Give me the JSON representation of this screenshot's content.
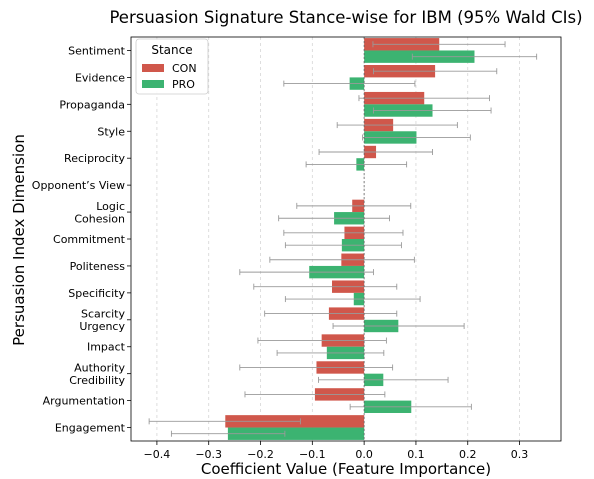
{
  "chart_data": {
    "type": "bar",
    "orientation": "horizontal",
    "title": "Persuasion Signature Stance-wise for IBM (95% Wald CIs)",
    "xlabel": "Coefficient Value (Feature Importance)",
    "ylabel": "Persuasion Index Dimension",
    "xlim": [
      -0.45,
      0.38
    ],
    "xticks": [
      -0.4,
      -0.3,
      -0.2,
      -0.1,
      0.0,
      0.1,
      0.2,
      0.3
    ],
    "xtick_labels": [
      "−0.4",
      "−0.3",
      "−0.2",
      "−0.1",
      "0.0",
      "0.1",
      "0.2",
      "0.3"
    ],
    "grid": "vertical dashed",
    "legend": {
      "title": "Stance",
      "position": "top-left"
    },
    "categories": [
      [
        "Sentiment"
      ],
      [
        "Evidence"
      ],
      [
        "Propaganda"
      ],
      [
        "Style"
      ],
      [
        "Reciprocity"
      ],
      [
        "Opponent’s View"
      ],
      [
        "Logic",
        "Cohesion"
      ],
      [
        "Commitment"
      ],
      [
        "Politeness"
      ],
      [
        "Specificity"
      ],
      [
        "Scarcity",
        "Urgency"
      ],
      [
        "Impact"
      ],
      [
        "Authority",
        "Credibility"
      ],
      [
        "Argumentation"
      ],
      [
        "Engagement"
      ]
    ],
    "series": [
      {
        "name": "CON",
        "color": "#d0574b",
        "values": [
          0.145,
          0.137,
          0.116,
          0.056,
          0.023,
          0.0,
          -0.023,
          -0.038,
          -0.044,
          -0.062,
          -0.068,
          -0.082,
          -0.092,
          -0.095,
          -0.268
        ],
        "ci_low": [
          0.017,
          0.018,
          -0.01,
          -0.052,
          -0.087,
          0.0,
          -0.13,
          -0.155,
          -0.182,
          -0.213,
          -0.192,
          -0.205,
          -0.24,
          -0.23,
          -0.415
        ],
        "ci_high": [
          0.272,
          0.256,
          0.242,
          0.18,
          0.132,
          0.0,
          0.09,
          0.075,
          0.097,
          0.063,
          0.063,
          0.043,
          0.055,
          0.04,
          -0.123
        ]
      },
      {
        "name": "PRO",
        "color": "#3cb371",
        "values": [
          0.213,
          -0.028,
          0.132,
          0.101,
          -0.015,
          0.0,
          -0.058,
          -0.043,
          -0.106,
          -0.02,
          0.066,
          -0.072,
          0.037,
          0.091,
          -0.263
        ],
        "ci_low": [
          0.093,
          -0.155,
          0.018,
          -0.003,
          -0.112,
          0.0,
          -0.165,
          -0.152,
          -0.24,
          -0.152,
          -0.06,
          -0.168,
          -0.088,
          -0.027,
          -0.372
        ],
        "ci_high": [
          0.333,
          0.098,
          0.245,
          0.205,
          0.082,
          0.0,
          0.049,
          0.072,
          0.018,
          0.108,
          0.193,
          0.038,
          0.162,
          0.207,
          -0.153
        ]
      }
    ]
  }
}
